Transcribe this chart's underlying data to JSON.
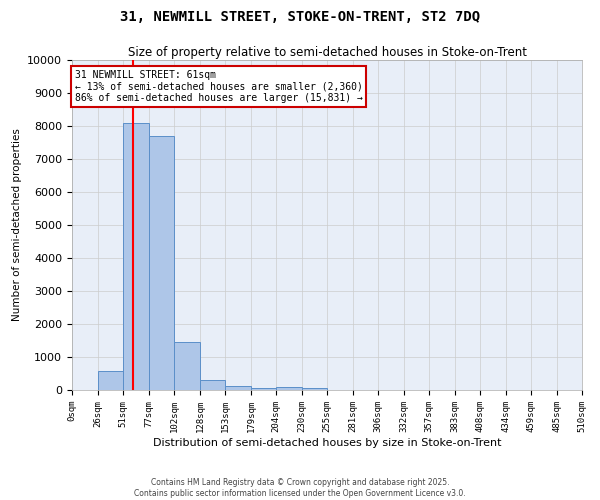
{
  "title": "31, NEWMILL STREET, STOKE-ON-TRENT, ST2 7DQ",
  "subtitle": "Size of property relative to semi-detached houses in Stoke-on-Trent",
  "xlabel": "Distribution of semi-detached houses by size in Stoke-on-Trent",
  "ylabel": "Number of semi-detached properties",
  "footer_line1": "Contains HM Land Registry data © Crown copyright and database right 2025.",
  "footer_line2": "Contains public sector information licensed under the Open Government Licence v3.0.",
  "bar_edges": [
    0,
    26,
    51,
    77,
    102,
    128,
    153,
    179,
    204,
    230,
    255,
    281,
    306,
    332,
    357,
    383,
    408,
    434,
    459,
    485,
    510
  ],
  "bar_heights": [
    0,
    580,
    8100,
    7700,
    1450,
    300,
    120,
    70,
    80,
    70,
    0,
    0,
    0,
    0,
    0,
    0,
    0,
    0,
    0,
    0
  ],
  "bar_color": "#aec6e8",
  "bar_edgecolor": "#5b8fc9",
  "red_line_x": 61,
  "ylim": [
    0,
    10000
  ],
  "yticks": [
    0,
    1000,
    2000,
    3000,
    4000,
    5000,
    6000,
    7000,
    8000,
    9000,
    10000
  ],
  "xtick_labels": [
    "0sqm",
    "26sqm",
    "51sqm",
    "77sqm",
    "102sqm",
    "128sqm",
    "153sqm",
    "179sqm",
    "204sqm",
    "230sqm",
    "255sqm",
    "281sqm",
    "306sqm",
    "332sqm",
    "357sqm",
    "383sqm",
    "408sqm",
    "434sqm",
    "459sqm",
    "485sqm",
    "510sqm"
  ],
  "annotation_title": "31 NEWMILL STREET: 61sqm",
  "annotation_line1": "← 13% of semi-detached houses are smaller (2,360)",
  "annotation_line2": "86% of semi-detached houses are larger (15,831) →",
  "annotation_box_color": "#ffffff",
  "annotation_box_edgecolor": "#cc0000",
  "background_color": "#ffffff",
  "grid_color": "#cccccc",
  "plot_bg_color": "#e8eef8"
}
